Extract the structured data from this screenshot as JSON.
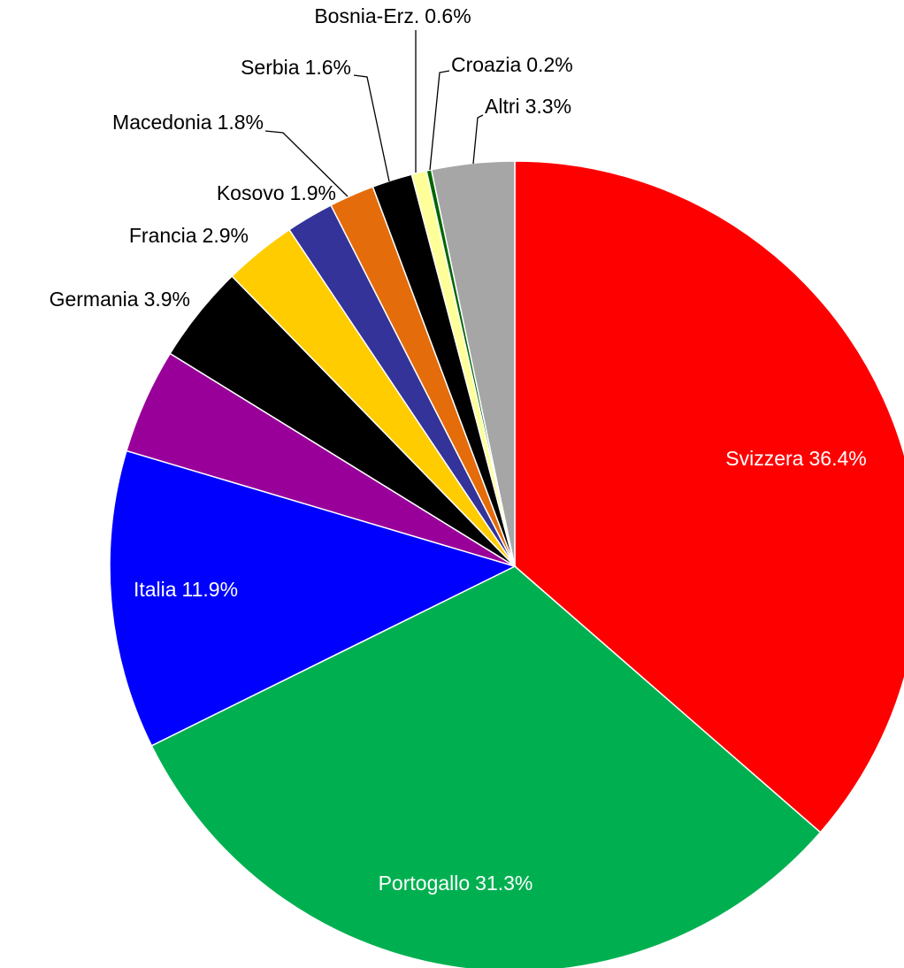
{
  "chart_data": {
    "type": "pie",
    "categories": [
      "Svizzera",
      "Portogallo",
      "Italia",
      null,
      "Germania",
      "Francia",
      "Kosovo",
      "Macedonia",
      "Serbia",
      "Bosnia-Erz.",
      "Croazia",
      "Altri"
    ],
    "values": [
      36.4,
      31.3,
      11.9,
      4.2,
      3.9,
      2.9,
      1.9,
      1.8,
      1.6,
      0.6,
      0.2,
      3.3
    ],
    "value_labels": [
      "36.4%",
      "31.3%",
      "11.9%",
      null,
      "3.9%",
      "2.9%",
      "1.9%",
      "1.8%",
      "1.6%",
      "0.6%",
      "0.2%",
      "3.3%"
    ],
    "colors": [
      "#ff0000",
      "#00b050",
      "#0000ff",
      "#990099",
      "#000000",
      "#ffcc00",
      "#333399",
      "#e46c0a",
      "#000000",
      "#ffff99",
      "#006600",
      "#a6a6a6"
    ]
  }
}
